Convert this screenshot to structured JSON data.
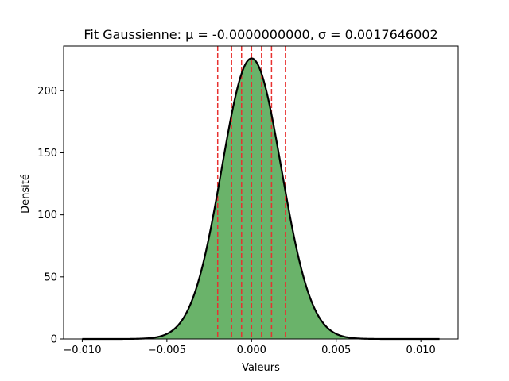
{
  "chart_data": {
    "type": "area",
    "title": "Fit Gaussienne: μ = -0.0000000000, σ = 0.0017646002",
    "xlabel": "Valeurs",
    "ylabel": "Densité",
    "xlim": [
      -0.0111,
      0.0122
    ],
    "ylim": [
      0,
      236
    ],
    "x_ticks": [
      -0.01,
      -0.005,
      0.0,
      0.005,
      0.01
    ],
    "x_tick_labels": [
      "−0.010",
      "−0.005",
      "0.000",
      "0.005",
      "0.010"
    ],
    "y_ticks": [
      0,
      50,
      100,
      150,
      200
    ],
    "y_tick_labels": [
      "0",
      "50",
      "100",
      "150",
      "200"
    ],
    "grid": false,
    "series": [
      {
        "kind": "density-area",
        "distribution": "gaussian",
        "mu": 0.0,
        "sigma": 0.0017646002,
        "x_range": [
          -0.01,
          0.0111
        ],
        "peak": 226,
        "fill_color": "#6ab36a"
      },
      {
        "kind": "gaussian-fit-line",
        "mu": 0.0,
        "sigma": 0.0017646002,
        "x_range": [
          -0.01,
          0.0111
        ],
        "line_color": "#000000"
      }
    ],
    "vertical_lines": {
      "x": [
        -0.002,
        -0.00118,
        -0.00059,
        0.0,
        0.00059,
        0.00118,
        0.002
      ],
      "color": "#e8312f",
      "style": "dashed"
    }
  }
}
